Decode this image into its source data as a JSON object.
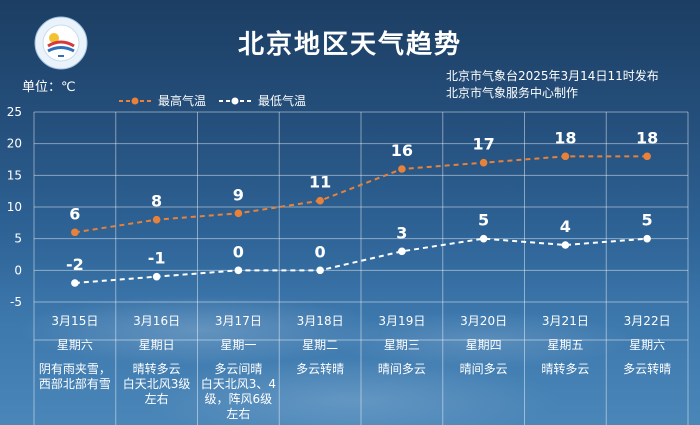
{
  "title": "北京地区天气趋势",
  "unit_label": "单位：℃",
  "issuer": {
    "line1": "北京市气象台2025年3月14日11时发布",
    "line2": "北京市气象服务中心制作"
  },
  "logo_label": "METEOROLOGICAL SERVICE",
  "colors": {
    "high": "#e8823a",
    "low": "#ffffff",
    "grid": "rgba(255,255,255,0.45)"
  },
  "chart_data": {
    "type": "line",
    "title": "北京地区天气趋势",
    "ylabel": "单位：℃",
    "ylim": [
      -5,
      25
    ],
    "yticks": [
      -5,
      0,
      5,
      10,
      15,
      20,
      25
    ],
    "grid": true,
    "legend_position": "top-left",
    "categories": [
      "3月15日",
      "3月16日",
      "3月17日",
      "3月18日",
      "3月19日",
      "3月20日",
      "3月21日",
      "3月22日"
    ],
    "weekdays": [
      "星期六",
      "星期日",
      "星期一",
      "星期二",
      "星期三",
      "星期四",
      "星期五",
      "星期六"
    ],
    "conditions": [
      "阴有雨夹雪，\n西部北部有雪",
      "晴转多云\n白天北风3级\n左右",
      "多云间晴\n白天北风3、4\n级，阵风6级\n左右",
      "多云转晴",
      "晴间多云",
      "晴间多云",
      "晴转多云",
      "多云转晴"
    ],
    "series": [
      {
        "name": "最高气温",
        "values": [
          6,
          8,
          9,
          11,
          16,
          17,
          18,
          18
        ]
      },
      {
        "name": "最低气温",
        "values": [
          -2,
          -1,
          0,
          0,
          3,
          5,
          4,
          5
        ]
      }
    ]
  }
}
